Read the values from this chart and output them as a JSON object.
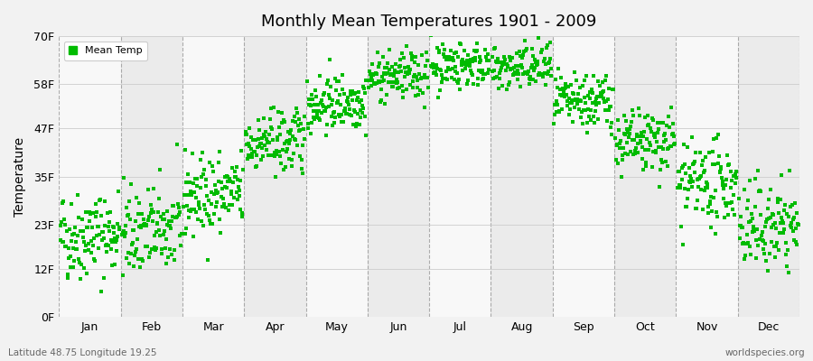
{
  "title": "Monthly Mean Temperatures 1901 - 2009",
  "ylabel": "Temperature",
  "month_labels": [
    "Jan",
    "Feb",
    "Mar",
    "Apr",
    "May",
    "Jun",
    "Jul",
    "Aug",
    "Sep",
    "Oct",
    "Nov",
    "Dec"
  ],
  "ytick_values": [
    0,
    12,
    23,
    35,
    47,
    58,
    70
  ],
  "ytick_labels": [
    "0F",
    "12F",
    "23F",
    "35F",
    "47F",
    "58F",
    "70F"
  ],
  "ylim": [
    0,
    70
  ],
  "legend_label": "Mean Temp",
  "dot_color": "#00bb00",
  "dot_size": 5,
  "footer_left": "Latitude 48.75 Longitude 19.25",
  "footer_right": "worldspecies.org",
  "bg_color": "#f2f2f2",
  "band_color_light": "#f8f8f8",
  "band_color_dark": "#ebebeb",
  "monthly_mean_F": [
    20.5,
    21.5,
    30.5,
    43.5,
    53.5,
    60.0,
    63.0,
    62.0,
    53.5,
    43.5,
    33.0,
    22.5
  ],
  "monthly_std_F": [
    5.5,
    5.5,
    5.0,
    4.0,
    3.5,
    3.0,
    3.0,
    3.0,
    3.5,
    4.0,
    5.0,
    5.5
  ],
  "n_years": 109,
  "seed": 42,
  "figsize": [
    9.0,
    4.0
  ],
  "dpi": 100
}
